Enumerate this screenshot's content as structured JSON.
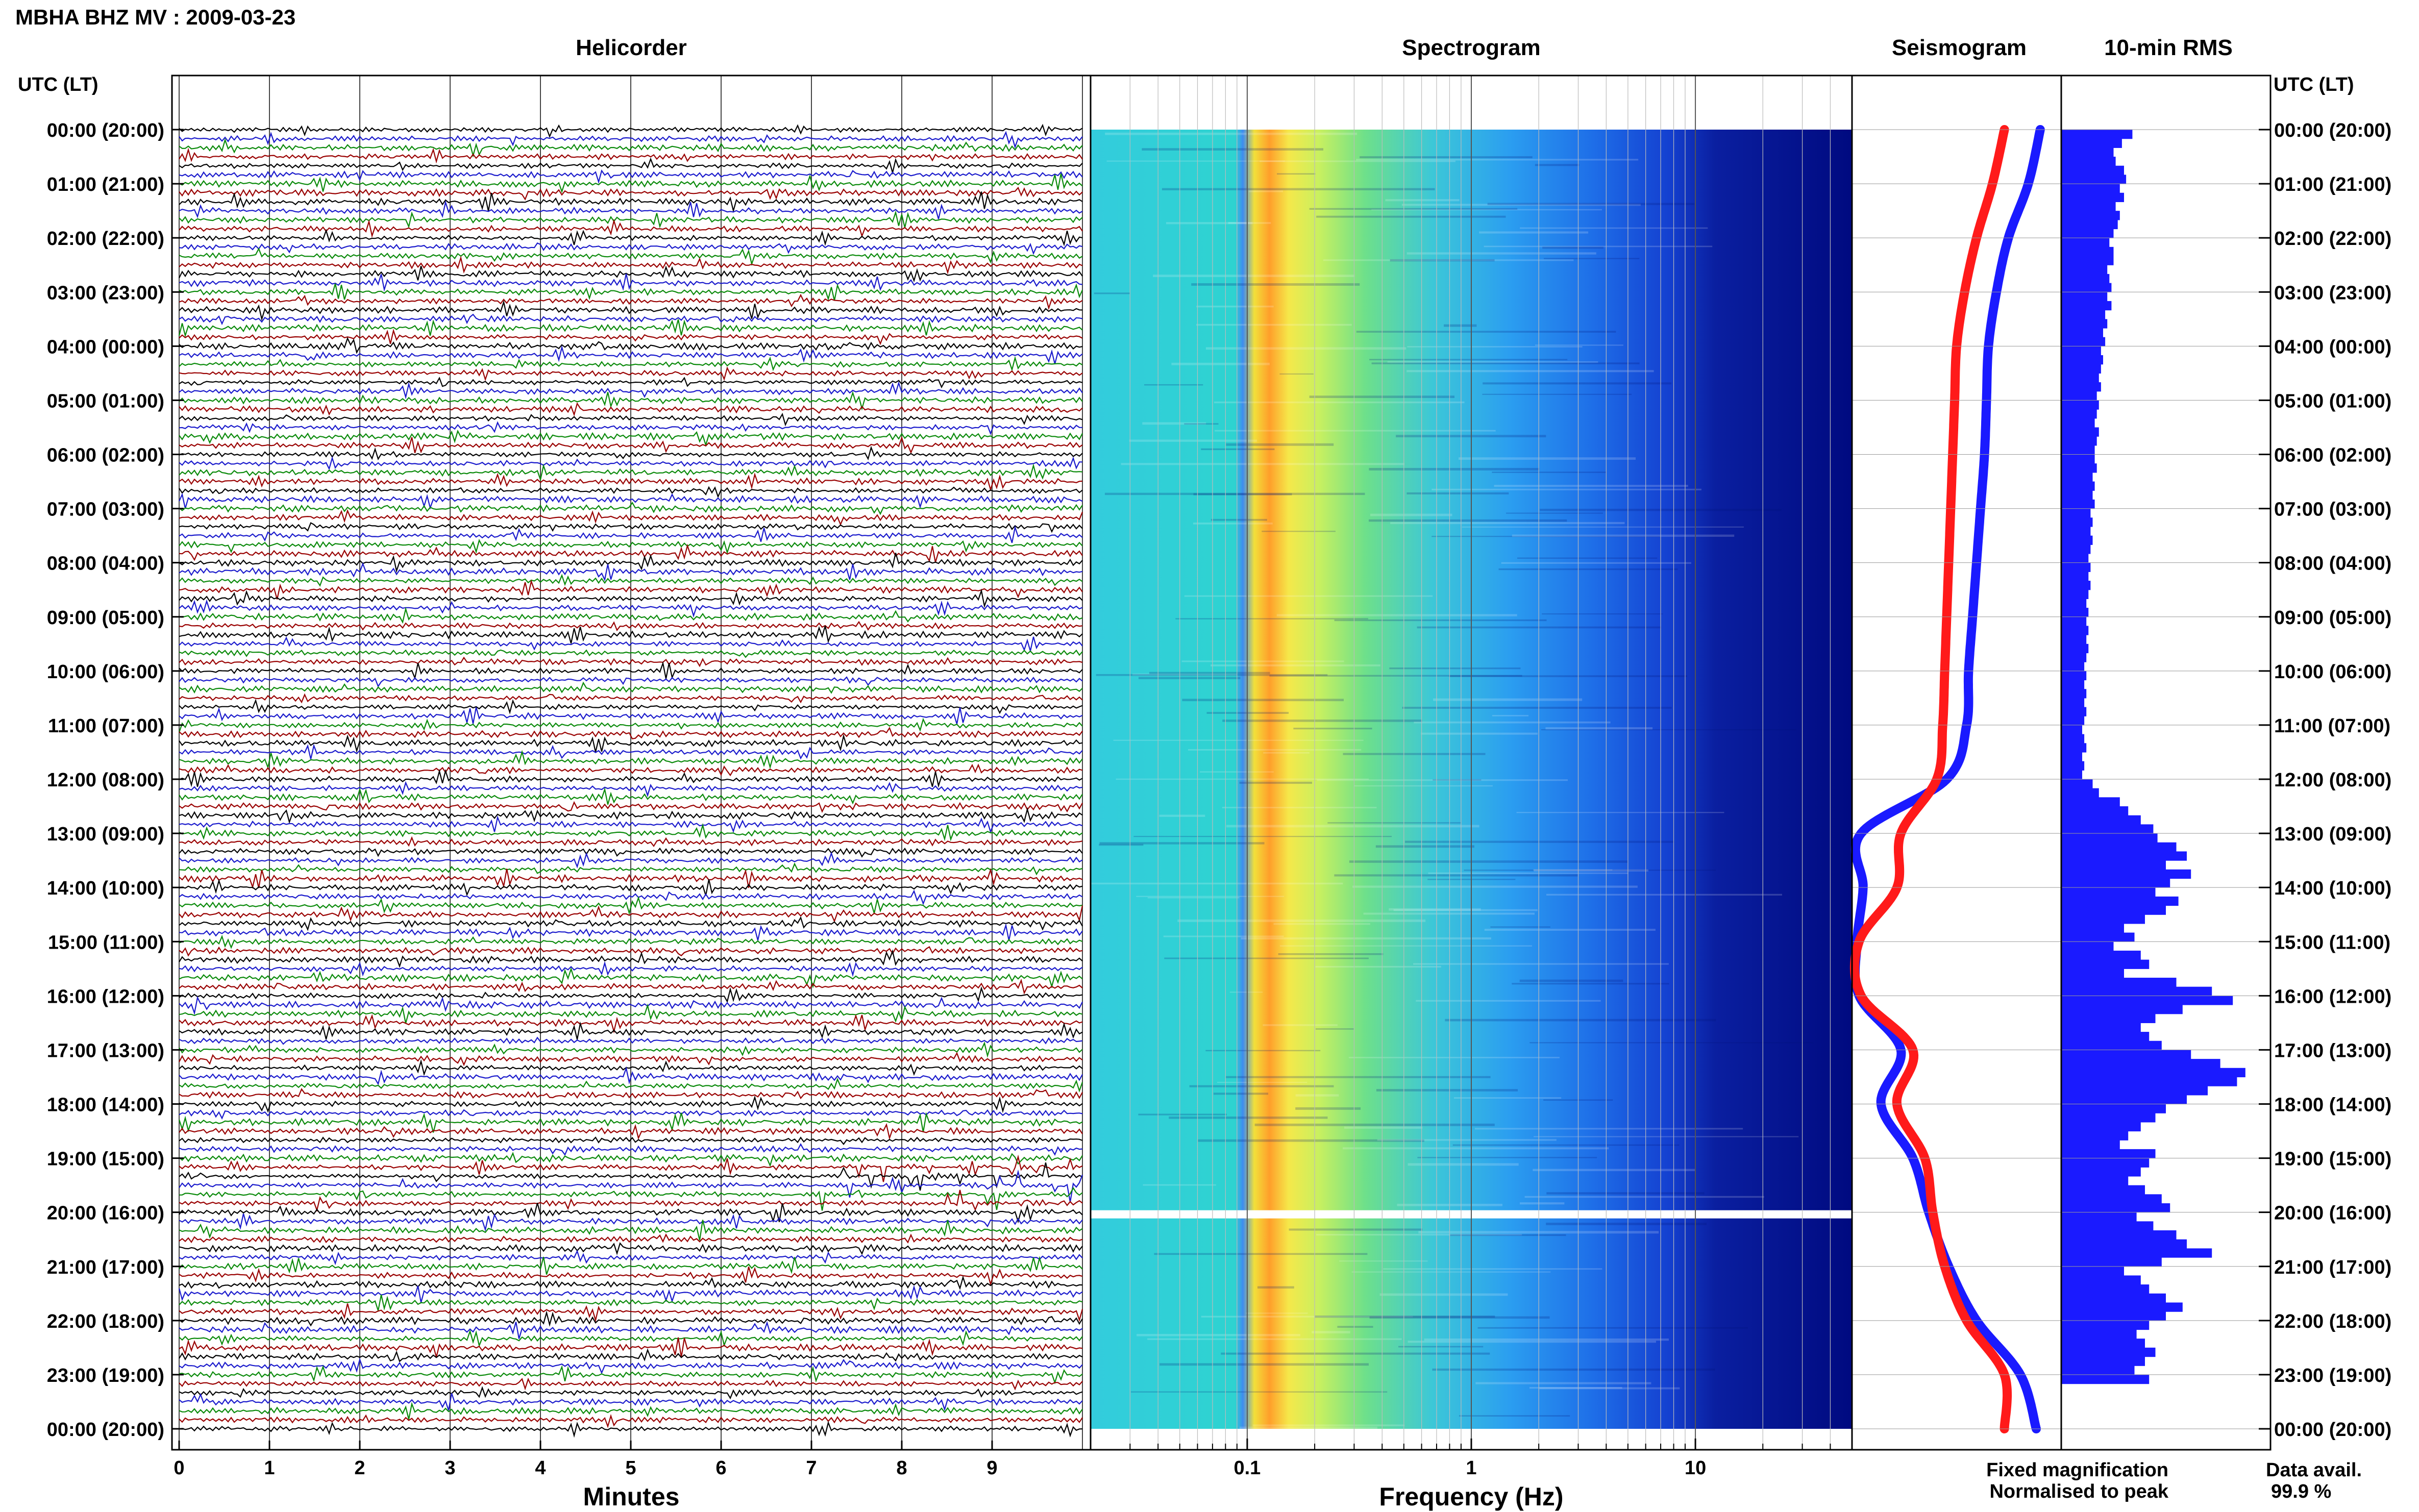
{
  "header": {
    "title": "MBHA BHZ MV : 2009-03-23"
  },
  "panels": {
    "helicorder": "Helicorder",
    "spectrogram": "Spectrogram",
    "seismogram": "Seismogram",
    "rms": "10-min RMS"
  },
  "axis": {
    "left_header": "UTC (LT)",
    "right_header": "UTC (LT)",
    "helicorder_xlabel": "Minutes",
    "spectrogram_xlabel": "Frequency (Hz)"
  },
  "legend": {
    "fixed": "Fixed magnification",
    "normalised": "Normalised to peak",
    "fixed_color": "#1a1aff",
    "normalised_color": "#ff1a1a"
  },
  "data_avail": {
    "label": "Data avail.",
    "value": "99.9 %"
  },
  "chart_data": [
    {
      "type": "line",
      "title": "Helicorder",
      "xlabel": "Minutes",
      "x_ticks": [
        "0",
        "1",
        "2",
        "3",
        "4",
        "5",
        "6",
        "7",
        "8",
        "9"
      ],
      "xlim": [
        0,
        10
      ],
      "ylabel": "UTC (LT)",
      "y_ticks": [
        "00:00 (20:00)",
        "01:00 (21:00)",
        "02:00 (22:00)",
        "03:00 (23:00)",
        "04:00 (00:00)",
        "05:00 (01:00)",
        "06:00 (02:00)",
        "07:00 (03:00)",
        "08:00 (04:00)",
        "09:00 (05:00)",
        "10:00 (06:00)",
        "11:00 (07:00)",
        "12:00 (08:00)",
        "13:00 (09:00)",
        "14:00 (10:00)",
        "15:00 (11:00)",
        "16:00 (12:00)",
        "17:00 (13:00)",
        "18:00 (14:00)",
        "19:00 (15:00)",
        "20:00 (16:00)",
        "21:00 (17:00)",
        "22:00 (18:00)",
        "23:00 (19:00)",
        "00:00 (20:00)"
      ],
      "trace_colors": [
        "#000000",
        "#1a1acc",
        "#0a8a0a",
        "#990000"
      ],
      "traces_per_hour": 6
    },
    {
      "type": "heatmap",
      "title": "Spectrogram",
      "xlabel": "Frequency (Hz)",
      "x_scale": "log",
      "x_ticks": [
        "0.1",
        "1",
        "10"
      ],
      "xlim": [
        0.02,
        50
      ],
      "gap_hour": 20
    },
    {
      "type": "line",
      "title": "Seismogram",
      "series": [
        {
          "name": "Fixed magnification",
          "color": "#1a1aff",
          "hours": [
            0,
            1,
            2,
            3,
            4,
            5,
            6,
            7,
            8,
            9,
            10,
            11,
            12,
            13,
            14,
            15,
            16,
            17,
            18,
            19,
            20,
            21,
            22,
            23,
            24
          ],
          "values": [
            0.92,
            0.86,
            0.76,
            0.7,
            0.66,
            0.65,
            0.64,
            0.62,
            0.6,
            0.58,
            0.56,
            0.55,
            0.45,
            0.02,
            0.03,
            0.0,
            0.01,
            0.22,
            0.12,
            0.28,
            0.36,
            0.46,
            0.6,
            0.82,
            0.9
          ]
        },
        {
          "name": "Normalised to peak",
          "color": "#ff1a1a",
          "hours": [
            0,
            1,
            2,
            3,
            4,
            5,
            6,
            7,
            8,
            9,
            10,
            11,
            12,
            13,
            14,
            15,
            16,
            17,
            18,
            19,
            20,
            21,
            22,
            23,
            24
          ],
          "values": [
            0.74,
            0.68,
            0.6,
            0.54,
            0.5,
            0.49,
            0.48,
            0.47,
            0.46,
            0.45,
            0.44,
            0.43,
            0.4,
            0.22,
            0.2,
            0.01,
            0.02,
            0.28,
            0.2,
            0.34,
            0.38,
            0.44,
            0.55,
            0.74,
            0.74
          ]
        }
      ]
    },
    {
      "type": "bar",
      "title": "10-min RMS",
      "orientation": "horizontal",
      "bin_minutes": 10,
      "color": "#1a1aff",
      "values": [
        0.34,
        0.29,
        0.25,
        0.26,
        0.3,
        0.31,
        0.28,
        0.3,
        0.26,
        0.28,
        0.27,
        0.25,
        0.23,
        0.25,
        0.25,
        0.22,
        0.23,
        0.24,
        0.22,
        0.24,
        0.21,
        0.22,
        0.2,
        0.21,
        0.19,
        0.2,
        0.19,
        0.18,
        0.19,
        0.17,
        0.18,
        0.17,
        0.16,
        0.18,
        0.17,
        0.16,
        0.16,
        0.17,
        0.15,
        0.16,
        0.15,
        0.16,
        0.14,
        0.15,
        0.14,
        0.15,
        0.14,
        0.13,
        0.14,
        0.13,
        0.14,
        0.13,
        0.12,
        0.13,
        0.12,
        0.13,
        0.12,
        0.13,
        0.12,
        0.11,
        0.12,
        0.11,
        0.12,
        0.11,
        0.12,
        0.11,
        0.1,
        0.11,
        0.12,
        0.1,
        0.11,
        0.1,
        0.15,
        0.18,
        0.28,
        0.32,
        0.38,
        0.44,
        0.46,
        0.55,
        0.6,
        0.5,
        0.62,
        0.52,
        0.45,
        0.56,
        0.5,
        0.4,
        0.3,
        0.35,
        0.25,
        0.38,
        0.42,
        0.3,
        0.55,
        0.72,
        0.82,
        0.58,
        0.45,
        0.38,
        0.42,
        0.48,
        0.62,
        0.76,
        0.88,
        0.84,
        0.7,
        0.6,
        0.5,
        0.45,
        0.38,
        0.32,
        0.28,
        0.45,
        0.42,
        0.38,
        0.32,
        0.4,
        0.48,
        0.52,
        0.36,
        0.44,
        0.55,
        0.6,
        0.72,
        0.48,
        0.3,
        0.38,
        0.42,
        0.5,
        0.58,
        0.5,
        0.42,
        0.36,
        0.4,
        0.45,
        0.4,
        0.35,
        0.42
      ]
    }
  ]
}
